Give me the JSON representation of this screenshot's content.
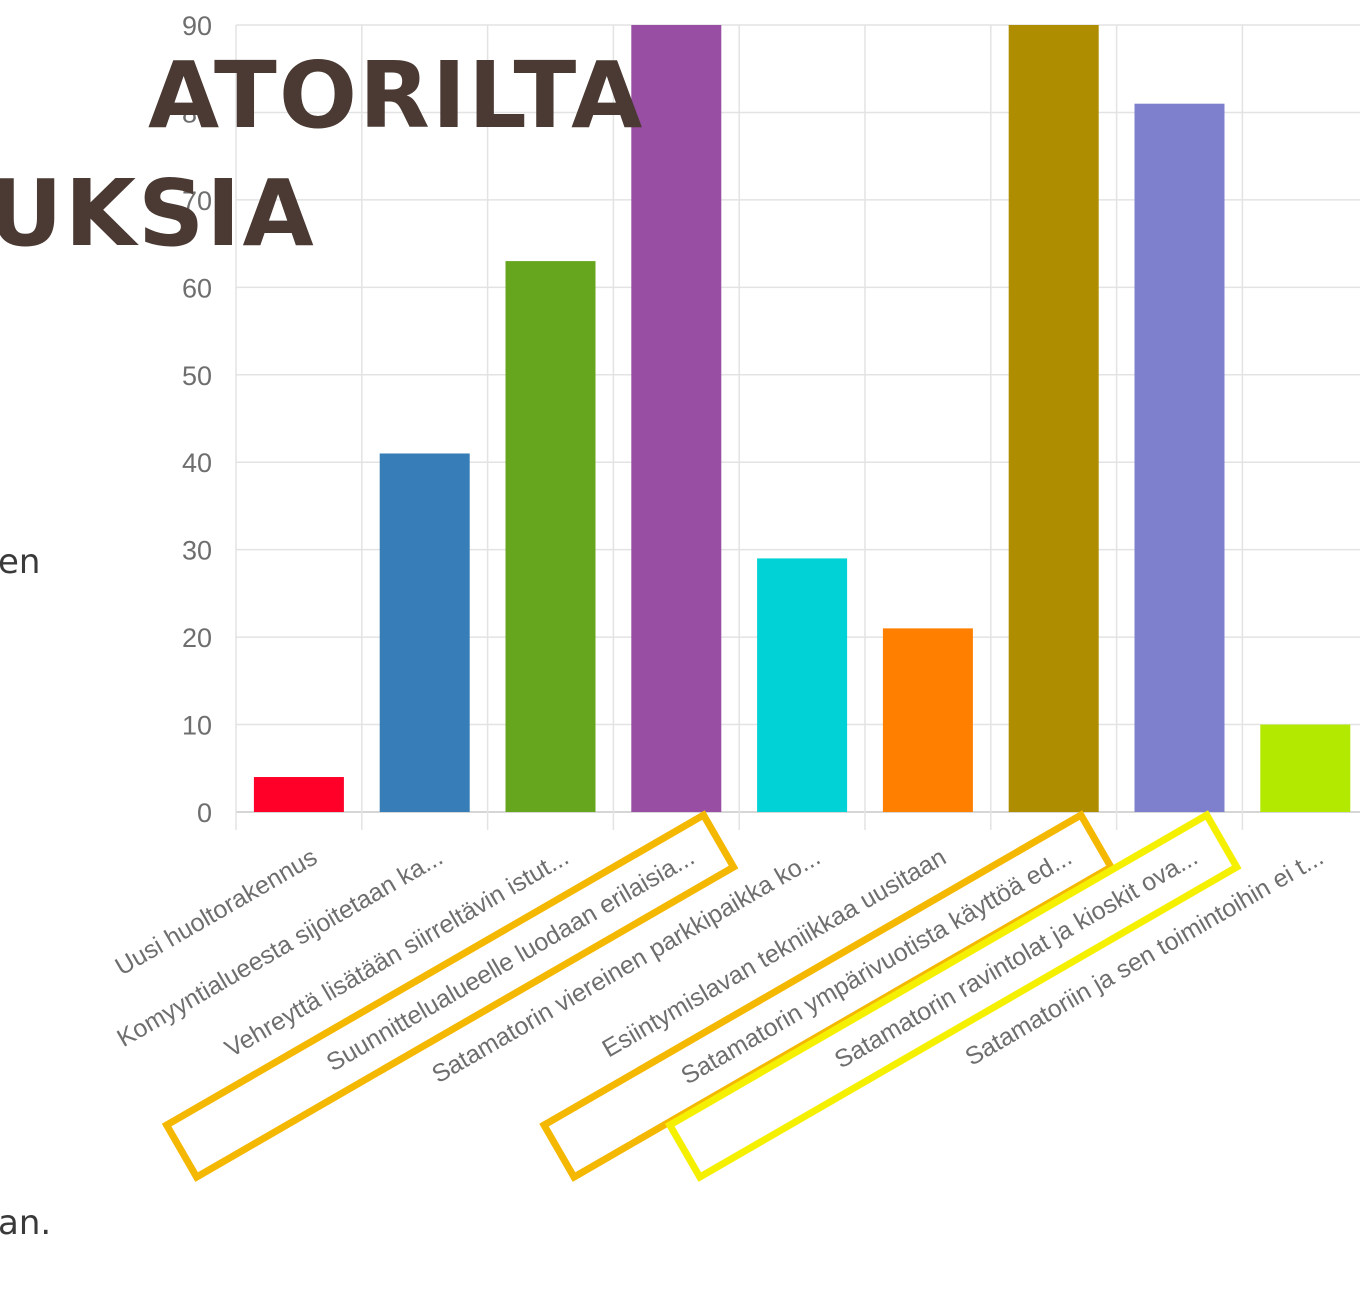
{
  "heading": {
    "line1": "ATORILTA",
    "line2": "UKSIA"
  },
  "side_text": [
    "en",
    "an."
  ],
  "colors": {
    "highlight_orange": "#f5b800",
    "highlight_yellow": "#f5f000"
  },
  "chart_data": {
    "type": "bar",
    "categories": [
      "Uusi huoltorakennus",
      "Komyyntialueesta sijoitetaan ka...",
      "Vehreyttä lisätään siirreltävin istut...",
      "Suunnittelualueelle luodaan erilaisia...",
      "Satamatorin viereinen parkkipaikka ko...",
      "Esiintymislavan tekniikkaa uusitaan",
      "Satamatorin ympärivuotista käyttöä ed...",
      "Satamatorin ravintolat ja kioskit ova...",
      "Satamatoriin ja sen toimintoihin ei t..."
    ],
    "values": [
      4,
      41,
      63,
      90,
      29,
      21,
      90,
      81,
      10
    ],
    "bar_colors": [
      "#ff0029",
      "#377eb8",
      "#66a61e",
      "#984ea3",
      "#00d2d5",
      "#ff7f00",
      "#af8d00",
      "#7f80cd",
      "#b3e900"
    ],
    "y_ticks": [
      "0",
      "10",
      "20",
      "30",
      "40",
      "50",
      "60",
      "70",
      "80",
      "90"
    ],
    "ylim": [
      0,
      90
    ],
    "grid": true,
    "highlighted_categories": [
      {
        "index": 3,
        "color": "orange"
      },
      {
        "index": 6,
        "color": "orange"
      },
      {
        "index": 7,
        "color": "yellow"
      }
    ]
  }
}
